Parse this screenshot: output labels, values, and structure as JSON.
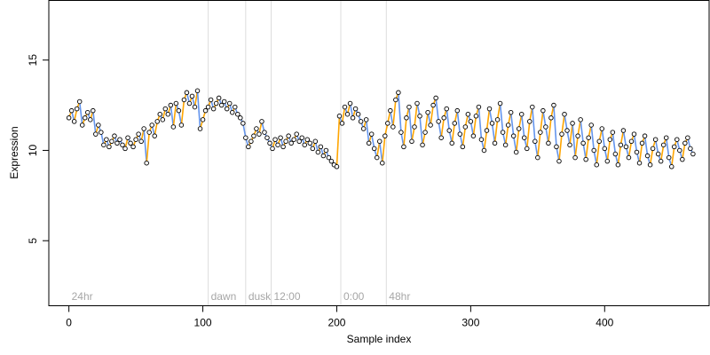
{
  "chart_data": {
    "type": "scatter",
    "xlabel": "Sample index",
    "ylabel": "Expression",
    "xlim": [
      -15,
      478
    ],
    "ylim": [
      1.4,
      18.3
    ],
    "xticks": [
      0,
      100,
      200,
      300,
      400
    ],
    "yticks": [
      5,
      10,
      15
    ],
    "grid": false,
    "colors": {
      "point_fill": "#ffffff",
      "point_stroke": "#000000",
      "up_segment": "#ffa500",
      "down_segment": "#6495ed",
      "marker_line": "#dddddd",
      "marker_label": "#a6a6a6"
    },
    "markers": [
      {
        "x": 0,
        "label": "24hr"
      },
      {
        "x": 104,
        "label": "dawn"
      },
      {
        "x": 132,
        "label": "dusk"
      },
      {
        "x": 151,
        "label": "12:00"
      },
      {
        "x": 203,
        "label": "0:00"
      },
      {
        "x": 237,
        "label": "48hr"
      }
    ],
    "series": [
      {
        "points": [
          [
            0,
            11.8
          ],
          [
            2,
            12.2
          ],
          [
            4,
            11.6
          ],
          [
            6,
            12.3
          ],
          [
            8,
            12.7
          ],
          [
            10,
            11.4
          ],
          [
            12,
            11.8
          ],
          [
            14,
            12.1
          ],
          [
            16,
            11.7
          ],
          [
            18,
            12.2
          ],
          [
            20,
            10.9
          ],
          [
            22,
            11.4
          ],
          [
            24,
            11.0
          ],
          [
            26,
            10.3
          ],
          [
            28,
            10.6
          ],
          [
            30,
            10.2
          ],
          [
            32,
            10.5
          ],
          [
            34,
            10.8
          ],
          [
            36,
            10.4
          ],
          [
            38,
            10.6
          ],
          [
            40,
            10.3
          ],
          [
            42,
            10.1
          ],
          [
            44,
            10.7
          ],
          [
            46,
            10.4
          ],
          [
            48,
            10.2
          ],
          [
            50,
            10.6
          ],
          [
            52,
            10.9
          ],
          [
            54,
            10.5
          ],
          [
            56,
            11.2
          ],
          [
            58,
            9.3
          ],
          [
            60,
            11.0
          ],
          [
            62,
            11.4
          ],
          [
            64,
            10.8
          ],
          [
            66,
            11.6
          ],
          [
            68,
            12.0
          ],
          [
            70,
            11.7
          ],
          [
            72,
            12.3
          ],
          [
            74,
            12.0
          ],
          [
            76,
            12.5
          ],
          [
            78,
            11.3
          ],
          [
            80,
            12.6
          ],
          [
            82,
            12.2
          ],
          [
            84,
            11.4
          ],
          [
            86,
            12.8
          ],
          [
            88,
            13.2
          ],
          [
            90,
            12.6
          ],
          [
            92,
            13.0
          ],
          [
            94,
            12.4
          ],
          [
            96,
            13.3
          ],
          [
            98,
            11.2
          ],
          [
            100,
            11.7
          ],
          [
            102,
            12.2
          ],
          [
            104,
            12.4
          ],
          [
            106,
            12.8
          ],
          [
            108,
            12.3
          ],
          [
            110,
            12.6
          ],
          [
            112,
            12.9
          ],
          [
            114,
            12.5
          ],
          [
            116,
            12.7
          ],
          [
            118,
            12.3
          ],
          [
            120,
            12.6
          ],
          [
            122,
            12.1
          ],
          [
            124,
            12.4
          ],
          [
            126,
            12.0
          ],
          [
            128,
            11.8
          ],
          [
            130,
            11.5
          ],
          [
            132,
            10.7
          ],
          [
            134,
            10.2
          ],
          [
            136,
            10.5
          ],
          [
            138,
            10.8
          ],
          [
            140,
            11.2
          ],
          [
            142,
            10.9
          ],
          [
            144,
            11.6
          ],
          [
            146,
            11.0
          ],
          [
            148,
            10.7
          ],
          [
            150,
            10.4
          ],
          [
            152,
            10.1
          ],
          [
            154,
            10.6
          ],
          [
            156,
            10.3
          ],
          [
            158,
            10.7
          ],
          [
            160,
            10.2
          ],
          [
            162,
            10.5
          ],
          [
            164,
            10.8
          ],
          [
            166,
            10.4
          ],
          [
            168,
            10.6
          ],
          [
            170,
            10.9
          ],
          [
            172,
            10.5
          ],
          [
            174,
            10.7
          ],
          [
            176,
            10.3
          ],
          [
            178,
            10.6
          ],
          [
            180,
            10.4
          ],
          [
            182,
            10.1
          ],
          [
            184,
            10.5
          ],
          [
            186,
            9.9
          ],
          [
            188,
            10.2
          ],
          [
            190,
            9.7
          ],
          [
            192,
            10.0
          ],
          [
            194,
            9.6
          ],
          [
            196,
            9.4
          ],
          [
            198,
            9.2
          ],
          [
            200,
            9.1
          ],
          [
            202,
            11.9
          ],
          [
            204,
            11.5
          ],
          [
            206,
            12.4
          ],
          [
            208,
            12.0
          ],
          [
            210,
            12.6
          ],
          [
            212,
            11.8
          ],
          [
            214,
            12.3
          ],
          [
            216,
            12.0
          ],
          [
            218,
            11.6
          ],
          [
            220,
            11.2
          ],
          [
            222,
            11.7
          ],
          [
            224,
            10.4
          ],
          [
            226,
            10.9
          ],
          [
            228,
            10.1
          ],
          [
            230,
            9.6
          ],
          [
            232,
            10.5
          ],
          [
            234,
            9.3
          ],
          [
            236,
            10.8
          ],
          [
            238,
            11.5
          ],
          [
            240,
            12.2
          ],
          [
            242,
            11.3
          ],
          [
            244,
            12.8
          ],
          [
            246,
            13.2
          ],
          [
            248,
            11.0
          ],
          [
            250,
            10.2
          ],
          [
            252,
            11.8
          ],
          [
            254,
            12.4
          ],
          [
            256,
            10.5
          ],
          [
            258,
            11.3
          ],
          [
            260,
            12.6
          ],
          [
            262,
            11.9
          ],
          [
            264,
            10.3
          ],
          [
            266,
            11.0
          ],
          [
            268,
            12.1
          ],
          [
            270,
            11.4
          ],
          [
            272,
            12.5
          ],
          [
            274,
            12.9
          ],
          [
            276,
            11.6
          ],
          [
            278,
            10.7
          ],
          [
            280,
            11.8
          ],
          [
            282,
            12.3
          ],
          [
            284,
            11.1
          ],
          [
            286,
            10.4
          ],
          [
            288,
            11.5
          ],
          [
            290,
            12.2
          ],
          [
            292,
            10.9
          ],
          [
            294,
            10.2
          ],
          [
            296,
            11.3
          ],
          [
            298,
            12.0
          ],
          [
            300,
            11.6
          ],
          [
            302,
            10.8
          ],
          [
            304,
            11.9
          ],
          [
            306,
            12.4
          ],
          [
            308,
            10.6
          ],
          [
            310,
            10.0
          ],
          [
            312,
            11.1
          ],
          [
            314,
            12.3
          ],
          [
            316,
            11.5
          ],
          [
            318,
            10.4
          ],
          [
            320,
            11.7
          ],
          [
            322,
            12.6
          ],
          [
            324,
            11.0
          ],
          [
            326,
            10.3
          ],
          [
            328,
            11.4
          ],
          [
            330,
            12.1
          ],
          [
            332,
            10.8
          ],
          [
            334,
            9.9
          ],
          [
            336,
            11.2
          ],
          [
            338,
            12.0
          ],
          [
            340,
            10.7
          ],
          [
            342,
            10.1
          ],
          [
            344,
            11.6
          ],
          [
            346,
            12.4
          ],
          [
            348,
            10.5
          ],
          [
            350,
            9.6
          ],
          [
            352,
            11.0
          ],
          [
            354,
            12.2
          ],
          [
            356,
            11.3
          ],
          [
            358,
            10.4
          ],
          [
            360,
            11.8
          ],
          [
            362,
            12.5
          ],
          [
            364,
            10.2
          ],
          [
            366,
            9.4
          ],
          [
            368,
            10.9
          ],
          [
            370,
            12.0
          ],
          [
            372,
            11.1
          ],
          [
            374,
            10.3
          ],
          [
            376,
            11.5
          ],
          [
            378,
            9.6
          ],
          [
            380,
            10.8
          ],
          [
            382,
            11.7
          ],
          [
            384,
            10.4
          ],
          [
            386,
            9.5
          ],
          [
            388,
            10.7
          ],
          [
            390,
            11.4
          ],
          [
            392,
            10.0
          ],
          [
            394,
            9.2
          ],
          [
            396,
            10.5
          ],
          [
            398,
            11.2
          ],
          [
            400,
            10.1
          ],
          [
            402,
            9.4
          ],
          [
            404,
            10.6
          ],
          [
            406,
            11.0
          ],
          [
            408,
            9.8
          ],
          [
            410,
            9.2
          ],
          [
            412,
            10.3
          ],
          [
            414,
            11.1
          ],
          [
            416,
            10.2
          ],
          [
            418,
            9.6
          ],
          [
            420,
            10.5
          ],
          [
            422,
            10.9
          ],
          [
            424,
            9.9
          ],
          [
            426,
            9.3
          ],
          [
            428,
            10.4
          ],
          [
            430,
            10.8
          ],
          [
            432,
            9.7
          ],
          [
            434,
            9.2
          ],
          [
            436,
            10.1
          ],
          [
            438,
            10.6
          ],
          [
            440,
            9.8
          ],
          [
            442,
            9.4
          ],
          [
            444,
            10.3
          ],
          [
            446,
            10.7
          ],
          [
            448,
            9.6
          ],
          [
            450,
            9.1
          ],
          [
            452,
            10.2
          ],
          [
            454,
            10.6
          ],
          [
            456,
            10.0
          ],
          [
            458,
            9.5
          ],
          [
            460,
            10.4
          ],
          [
            462,
            10.7
          ],
          [
            464,
            10.1
          ],
          [
            466,
            9.8
          ]
        ]
      }
    ]
  }
}
